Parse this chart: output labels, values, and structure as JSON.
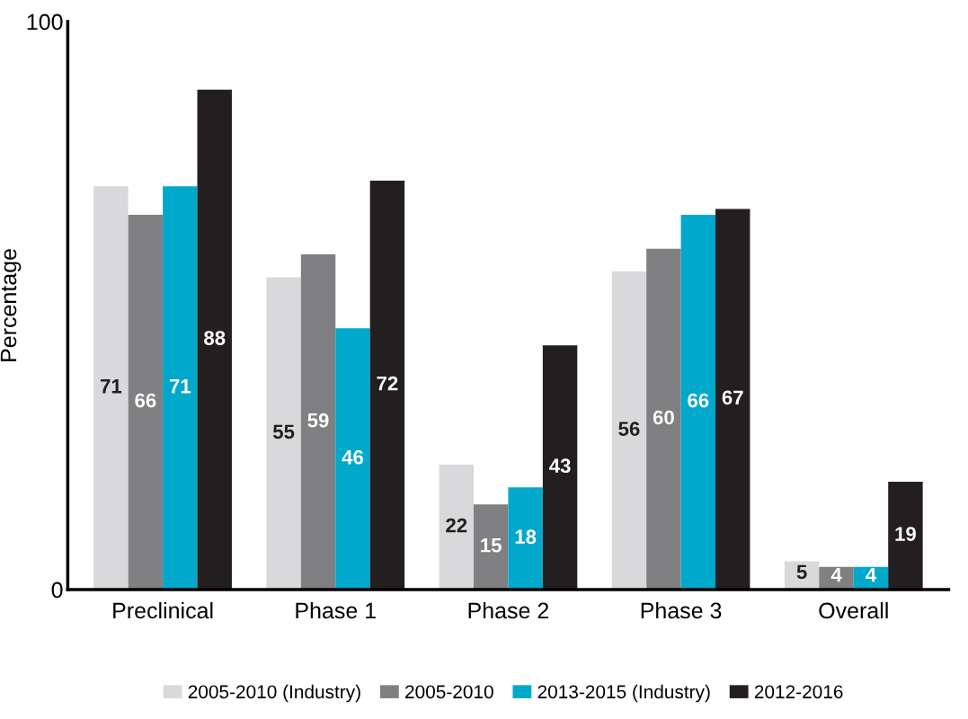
{
  "chart_data": {
    "type": "bar",
    "ylabel": "Percentage",
    "categories": [
      "Preclinical",
      "Phase 1",
      "Phase 2",
      "Phase 3",
      "Overall"
    ],
    "series": [
      {
        "name": "2005-2010 (Industry)",
        "color": "#d9d9db",
        "values": [
          71,
          55,
          22,
          56,
          5
        ]
      },
      {
        "name": "2005-2010",
        "color": "#808083",
        "values": [
          66,
          59,
          15,
          60,
          4
        ]
      },
      {
        "name": "2013-2015 (Industry)",
        "color": "#00a8cc",
        "values": [
          71,
          46,
          18,
          66,
          4
        ]
      },
      {
        "name": "2012-2016",
        "color": "#231f20",
        "values": [
          88,
          72,
          43,
          67,
          19
        ]
      }
    ],
    "ylim": [
      0,
      100
    ],
    "yticks": [
      0,
      100
    ],
    "data_labels": true,
    "grid": false,
    "legend": "bottom"
  }
}
